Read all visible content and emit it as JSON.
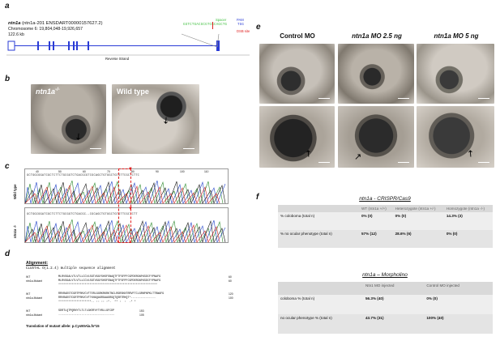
{
  "panels": {
    "a": {
      "letter": "a",
      "gene": "ntn1a",
      "transcript": "(ntn1a-201 ENSDART00000157627.2)",
      "chromosome": "Chromosome 6: 19,804,048-19,926,657",
      "size": "122.6 kb",
      "strand": "Reverse Strand",
      "spacer_label": "Spacer",
      "spacer_seq": "GGTCTGACGCGTCGCAGCTG",
      "pam_label": "PAM",
      "pam_seq": "TGG",
      "dsb_label": "DSB site"
    },
    "b": {
      "letter": "b",
      "mutant_label": "ntn1a",
      "mutant_sup": "-/-",
      "wt_label": "Wild type"
    },
    "c": {
      "letter": "c",
      "wt_row_label": "Wild type",
      "mut_row_label": "ntn1a -/-",
      "ticks": [
        "40",
        "50",
        "60",
        "70",
        "80",
        "90",
        "100",
        "110"
      ],
      "wt_seq": "GCTGGCGGATCGCTCTTCTGCGGTCTGACGCGTCGCAGCTGTGGCTGTGTTCGCTCTTC",
      "mut_seq": "GCTGGCGGATCGCTCTTCTGCGGTCTGACGC--CGCAGCTGTGGCTGTGTTCGCTCTT"
    },
    "d": {
      "letter": "d",
      "alignment_title": "Alignment:",
      "clustal": "CLUSTAL O(1.2.4) multiple sequence alignment",
      "blocks": [
        {
          "rows": [
            {
              "name": "WT",
              "seq": "MLRVSGALVTLVTLLCCVLSGTVGGYSHSFSNAQTFTFSFPFCGPDERGNFKSDCFYPNAFG",
              "num": "60"
            },
            {
              "name": "ntn1a-Mutant",
              "seq": "MLRVSGALVTLVTLLCCVLSGTVGGYSHSFSNAQTFTFSFPFCGPDERGNFKSDCFYPNAFG",
              "num": "60"
            }
          ],
          "cons": "************************************************************"
        },
        {
          "rows": [
            {
              "name": "WT",
              "seq": "RRVRADSTCGRTPRKVCVTTERLGGRKRKRKTNCLRGRSKNTRRVFTCLGRNPNPKLTTRWAFG",
              "num": "120"
            },
            {
              "name": "ntn1a-Mutant",
              "seq": "RRVRADSTCGRTPRKVCVTTKHAQAGRGAAGRGQTQSRTRHQT*---------------",
              "num": "100"
            }
          ],
          "cons": "********************.. :: :: :*.  ** :  :  .* *"
        },
        {
          "rows": [
            {
              "name": "WT",
              "seq": "SDRTLQTPQRNYTLTLTLGKRFVYTVRLLGFCDP",
              "num": "153"
            },
            {
              "name": "ntn1a-Mutant",
              "seq": "----------------------------------",
              "num": "105"
            }
          ],
          "cons": ""
        }
      ],
      "translation": "Translation of mutant allele: p.Cys90Ala.fs*15"
    },
    "e": {
      "letter": "e",
      "columns": [
        "Control MO",
        "ntn1a MO 2.5 ng",
        "ntn1a MO 5 ng"
      ]
    },
    "f": {
      "letter": "f",
      "crispr_title": "ntn1a - CRISPR/Cas9",
      "crispr_headers": [
        "",
        "WT (ntn1a +/+)",
        "Heterozygote (ntn1a +/-)",
        "Homozygote (ntn1a -/-)"
      ],
      "crispr_rows": [
        {
          "label": "% coloboma (total n)",
          "cells": [
            "0% (0)",
            "0% (0)",
            "14.3% (3)"
          ]
        },
        {
          "label": "% no ocular phenotype (total n)",
          "cells": [
            "57% (12)",
            "28.6% (6)",
            "0% (0)"
          ]
        }
      ],
      "morph_title": "ntn1a – Morpholino",
      "morph_headers": [
        "",
        "Ntn1 MO injected",
        "Control MO injected"
      ],
      "morph_rows": [
        {
          "label": "coloboma % (total n)",
          "cells": [
            "56.3% (40)",
            "0% (0)"
          ]
        },
        {
          "label": "no ocular phenotype % (total n)",
          "cells": [
            "43.7% (31)",
            "100% (40)"
          ]
        }
      ]
    }
  },
  "colors": {
    "gene_blue": "#2a3bd6",
    "spacer_green": "#3fbf3f",
    "pam_blue": "#2a3bd6",
    "dsb_red": "#e02020",
    "table_header": "#d9d9d9",
    "table_row": "#eeeeee"
  }
}
